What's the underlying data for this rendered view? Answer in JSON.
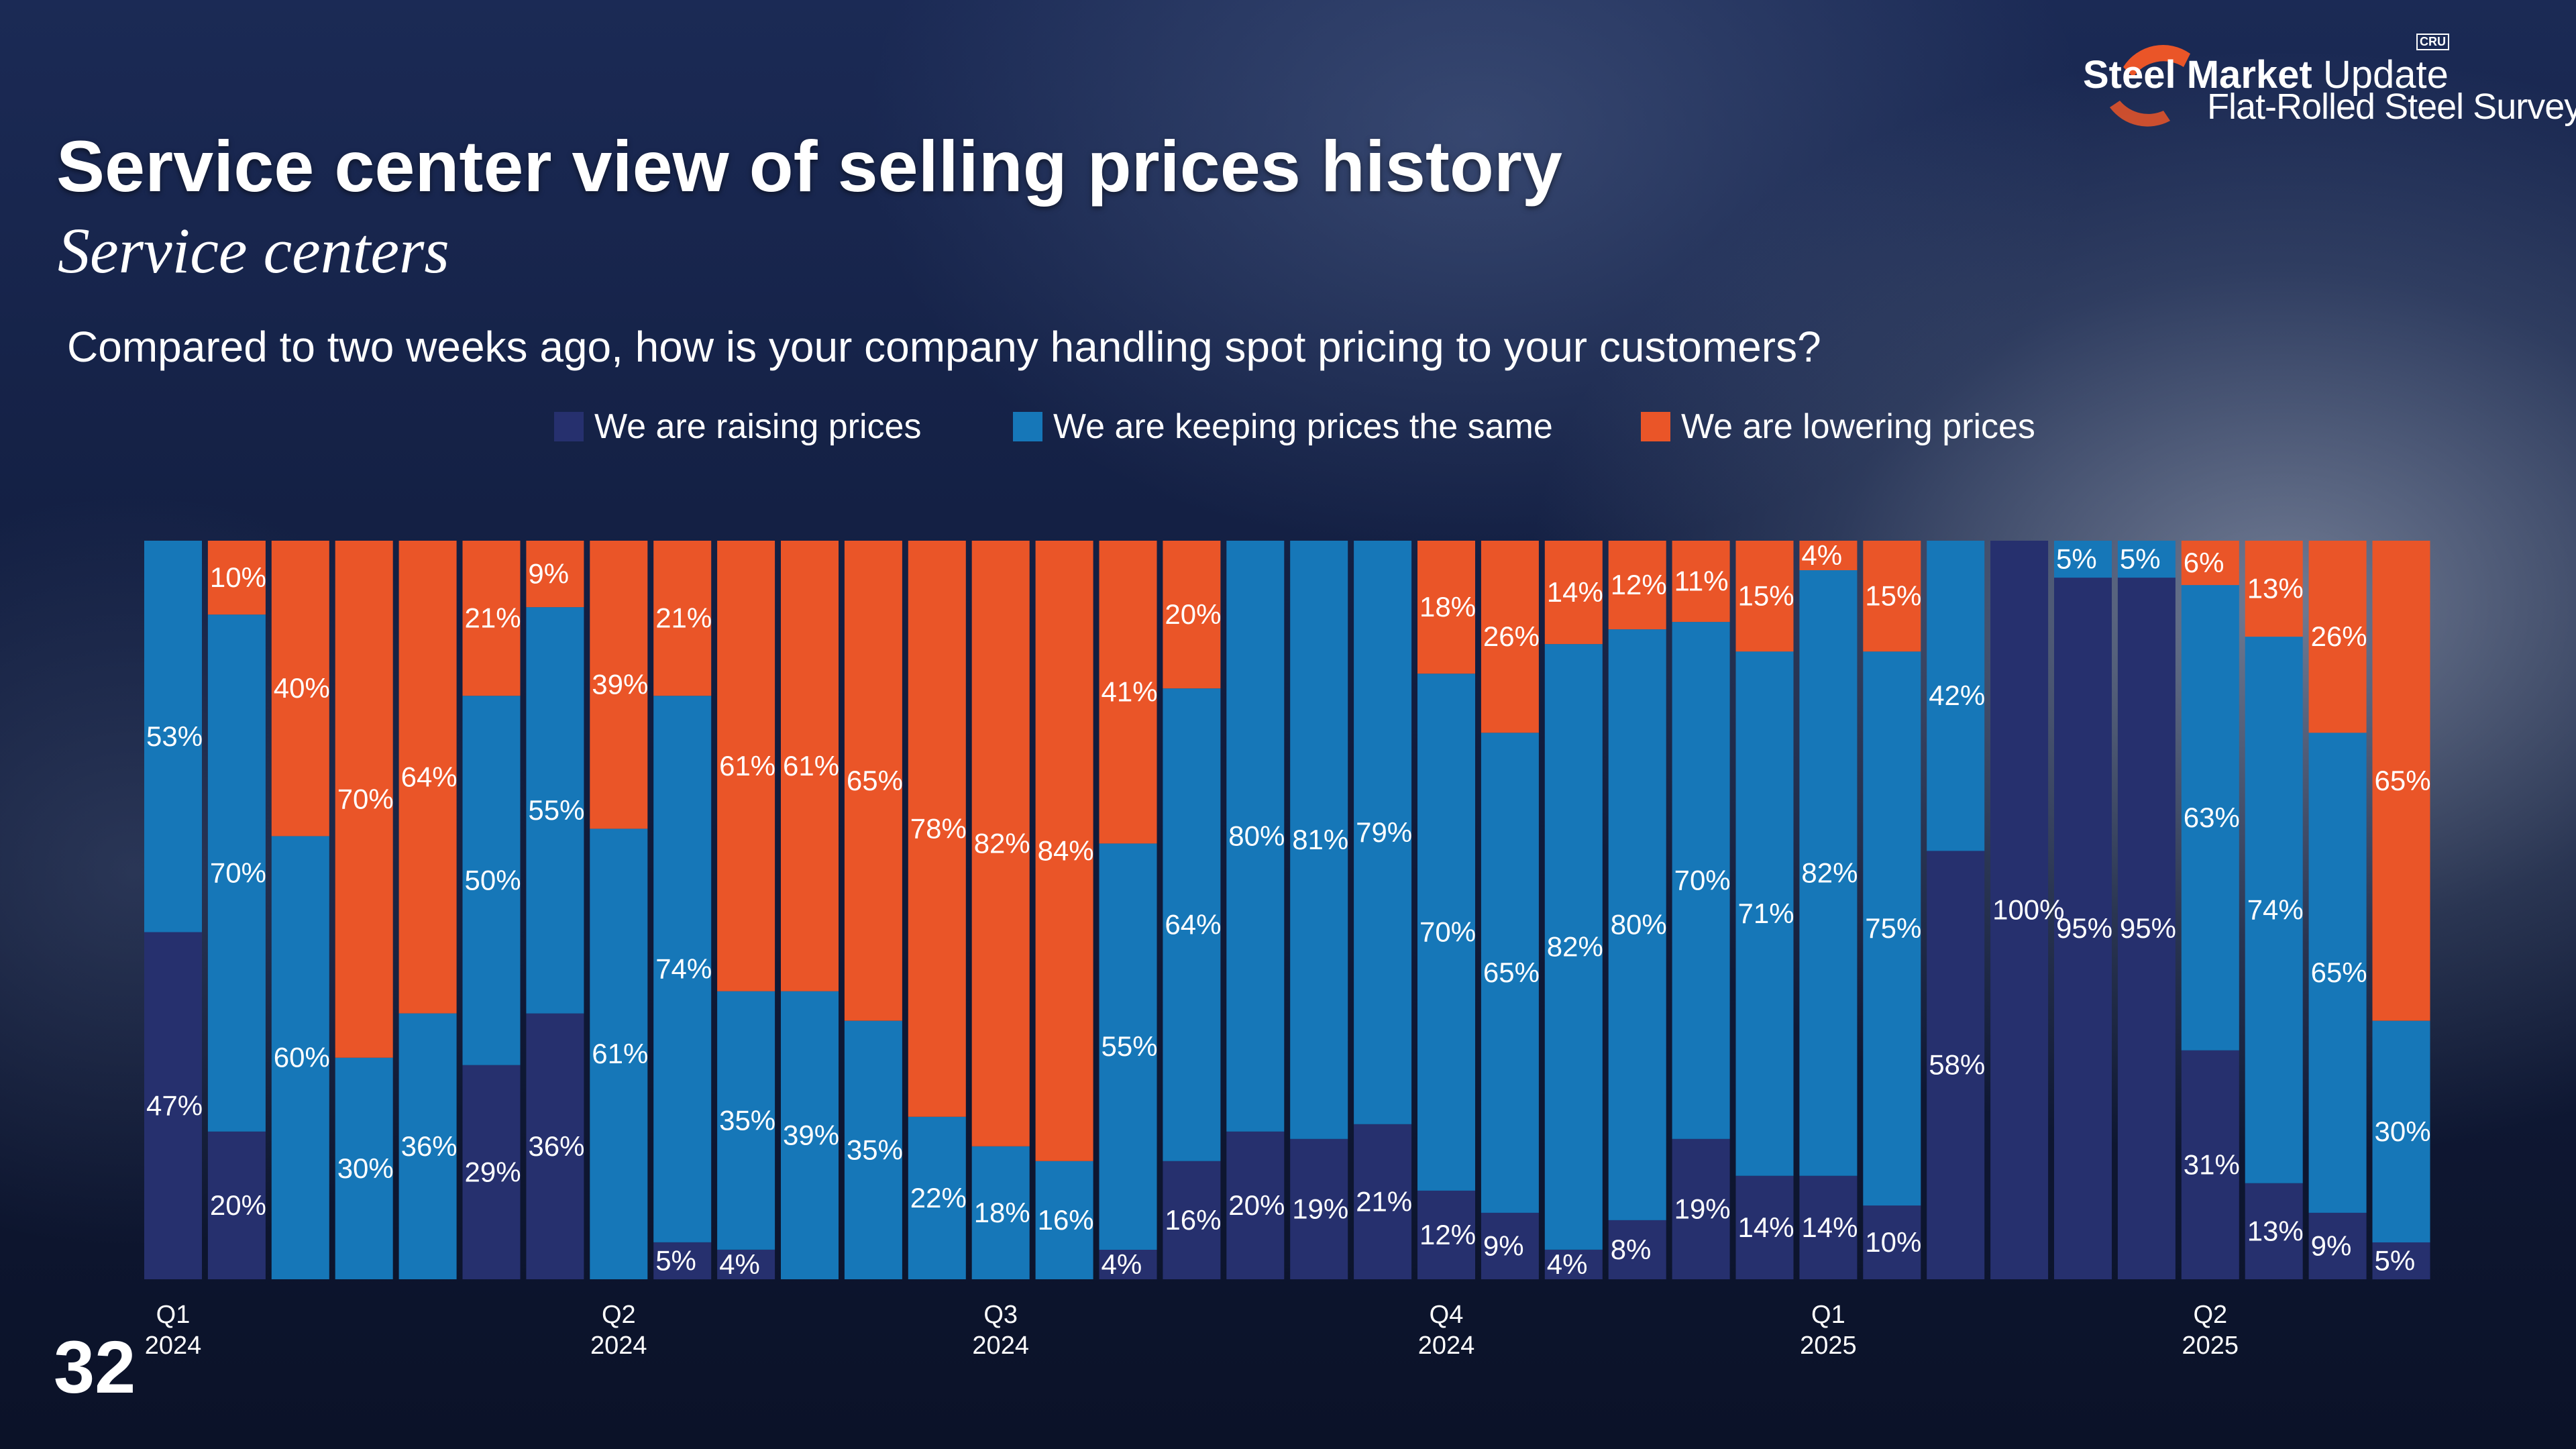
{
  "header": {
    "title": "Service center view of selling prices history",
    "subtitle": "Service centers",
    "question": "Compared to two weeks ago, how is your company handling spot pricing to your customers?"
  },
  "logo": {
    "brand_bold": "Steel Market",
    "brand_light": "Update",
    "survey": "Flat-Rolled Steel Survey",
    "cru": "CRU"
  },
  "page_number": "32",
  "colors": {
    "raising": "#26306e",
    "same": "#1677b8",
    "lowering": "#ea5528",
    "label": "#ffffff"
  },
  "chart_data": {
    "type": "bar",
    "stacked": true,
    "normalized_percent": true,
    "title": "Service center view of selling prices history",
    "ylim": [
      0,
      100
    ],
    "legend_position": "top",
    "series": [
      {
        "name": "We are raising prices",
        "values": [
          47,
          20,
          0,
          0,
          0,
          29,
          36,
          0,
          5,
          4,
          0,
          0,
          0,
          0,
          0,
          4,
          16,
          20,
          19,
          21,
          12,
          9,
          4,
          8,
          19,
          14,
          14,
          10,
          58,
          100,
          95,
          95,
          31,
          13,
          9,
          5
        ],
        "labels": [
          "47%",
          "20%",
          "",
          "",
          "",
          "29%",
          "36%",
          "",
          "",
          "",
          "",
          "",
          "",
          "",
          "",
          "",
          "",
          "",
          "",
          "",
          "",
          "",
          "",
          "",
          "",
          "",
          "",
          "",
          "58%",
          "100%",
          "95%",
          "95%",
          "31%",
          "",
          "",
          ""
        ]
      },
      {
        "name": "We are keeping prices the same",
        "values": [
          53,
          70,
          60,
          30,
          36,
          50,
          55,
          61,
          74,
          35,
          39,
          35,
          22,
          18,
          16,
          55,
          64,
          80,
          81,
          79,
          70,
          65,
          82,
          80,
          70,
          71,
          82,
          75,
          42,
          0,
          5,
          5,
          63,
          74,
          65,
          30
        ],
        "labels": [
          "53%",
          "70%",
          "60%",
          "30%",
          "36%",
          "50%",
          "55%",
          "61%",
          "74%",
          "35%",
          "39%",
          "35%",
          "22%",
          "18%",
          "16%",
          "55%",
          "64%",
          "80%",
          "81%",
          "79%",
          "70%",
          "65%",
          "82%",
          "80%",
          "70%",
          "71%",
          "82%",
          "75%",
          "42%",
          "",
          "5%",
          "5%",
          "63%",
          "74%",
          "65%",
          "30%"
        ]
      },
      {
        "name": "We are lowering prices",
        "values": [
          0,
          10,
          40,
          70,
          64,
          21,
          9,
          39,
          21,
          61,
          61,
          65,
          78,
          82,
          84,
          41,
          20,
          0,
          0,
          0,
          18,
          26,
          14,
          12,
          11,
          15,
          4,
          15,
          0,
          0,
          0,
          0,
          6,
          13,
          26,
          65
        ],
        "labels": [
          "",
          "10%",
          "40%",
          "70%",
          "64%",
          "21%",
          "9%",
          "39%",
          "21%",
          "61%",
          "61%",
          "65%",
          "78%",
          "82%",
          "84%",
          "41%",
          "20%",
          "",
          "",
          "",
          "18%",
          "26%",
          "14%",
          "12%",
          "11%",
          "15%",
          "4%",
          "15%",
          "",
          "",
          "",
          "",
          "6%",
          "13%",
          "26%",
          "65%"
        ]
      }
    ],
    "x_ticks": [
      {
        "bar_index": 0,
        "quarter": "Q1",
        "year": "2024"
      },
      {
        "bar_index": 7,
        "quarter": "Q2",
        "year": "2024"
      },
      {
        "bar_index": 13,
        "quarter": "Q3",
        "year": "2024"
      },
      {
        "bar_index": 20,
        "quarter": "Q4",
        "year": "2024"
      },
      {
        "bar_index": 26,
        "quarter": "Q1",
        "year": "2025"
      },
      {
        "bar_index": 32,
        "quarter": "Q2",
        "year": "2025"
      }
    ],
    "small_labels": [
      {
        "bar_index": 8,
        "series_index": 0,
        "label": "5%"
      },
      {
        "bar_index": 9,
        "series_index": 0,
        "label": "4%"
      },
      {
        "bar_index": 15,
        "series_index": 0,
        "label": "4%"
      },
      {
        "bar_index": 16,
        "series_index": 0,
        "label": "16%"
      },
      {
        "bar_index": 17,
        "series_index": 0,
        "label": "20%"
      },
      {
        "bar_index": 18,
        "series_index": 0,
        "label": "19%"
      },
      {
        "bar_index": 19,
        "series_index": 0,
        "label": "21%"
      },
      {
        "bar_index": 20,
        "series_index": 0,
        "label": "12%"
      },
      {
        "bar_index": 21,
        "series_index": 0,
        "label": "9%"
      },
      {
        "bar_index": 22,
        "series_index": 0,
        "label": "4%"
      },
      {
        "bar_index": 23,
        "series_index": 0,
        "label": "8%"
      },
      {
        "bar_index": 24,
        "series_index": 0,
        "label": "19%"
      },
      {
        "bar_index": 25,
        "series_index": 0,
        "label": "14%"
      },
      {
        "bar_index": 26,
        "series_index": 0,
        "label": "14%"
      },
      {
        "bar_index": 27,
        "series_index": 0,
        "label": "10%"
      },
      {
        "bar_index": 33,
        "series_index": 0,
        "label": "13%"
      },
      {
        "bar_index": 34,
        "series_index": 0,
        "label": "9%"
      },
      {
        "bar_index": 35,
        "series_index": 0,
        "label": "5%"
      }
    ]
  }
}
